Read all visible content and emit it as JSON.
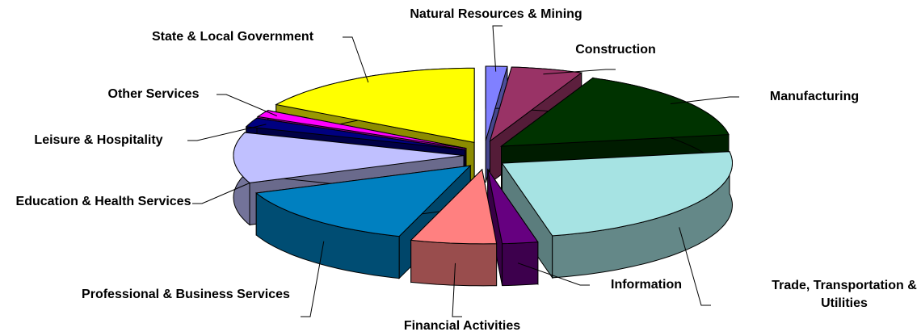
{
  "chart_data": {
    "type": "pie",
    "categories": [
      "Natural Resources & Mining",
      "Construction",
      "Manufacturing",
      "Trade, Transportation & Utilities",
      "Information",
      "Financial Activities",
      "Professional & Business Services",
      "Education & Health Services",
      "Leisure & Hospitality",
      "Other Services",
      "State & Local Government"
    ],
    "values": [
      1.5,
      5,
      16,
      24,
      2.5,
      6,
      14,
      11,
      2,
      1.5,
      16.5
    ],
    "colors": [
      "#8080ff",
      "#993366",
      "#003300",
      "#a6e3e3",
      "#660080",
      "#ff8080",
      "#0080c0",
      "#c0c0ff",
      "#000080",
      "#ff00ff",
      "#ffff00"
    ]
  }
}
